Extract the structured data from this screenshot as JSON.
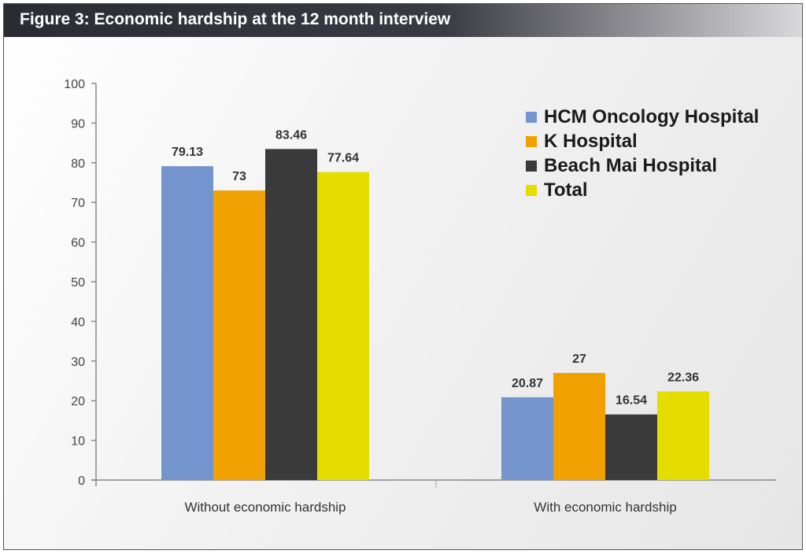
{
  "figure": {
    "title": "Figure 3: Economic hardship at the 12 month interview"
  },
  "legend": {
    "items": [
      {
        "label": "HCM Oncology Hospital",
        "color": "#7394cc"
      },
      {
        "label": "K Hospital",
        "color": "#f0a000"
      },
      {
        "label": "Beach Mai Hospital",
        "color": "#3a3a3a"
      },
      {
        "label": "Total",
        "color": "#e5dc00"
      }
    ]
  },
  "chart_data": {
    "type": "bar",
    "title": "Figure 3: Economic hardship at the 12 month interview",
    "xlabel": "",
    "ylabel": "",
    "categories": [
      "Without economic hardship",
      "With economic hardship"
    ],
    "series": [
      {
        "name": "HCM Oncology Hospital",
        "values": [
          79.13,
          20.87
        ],
        "labels": [
          "79.13",
          "20.87"
        ],
        "color": "#7394cc"
      },
      {
        "name": "K Hospital",
        "values": [
          73,
          27
        ],
        "labels": [
          "73",
          "27"
        ],
        "color": "#f0a000"
      },
      {
        "name": "Beach Mai Hospital",
        "values": [
          83.46,
          16.54
        ],
        "labels": [
          "83.46",
          "16.54"
        ],
        "color": "#3a3a3a"
      },
      {
        "name": "Total",
        "values": [
          77.64,
          22.36
        ],
        "labels": [
          "77.64",
          "22.36"
        ],
        "color": "#e5dc00"
      }
    ],
    "ylim": [
      0,
      100
    ],
    "yticks": [
      "0",
      "10",
      "20",
      "30",
      "40",
      "50",
      "60",
      "70",
      "80",
      "90",
      "100"
    ],
    "grid": false,
    "legend_position": "top-right"
  }
}
